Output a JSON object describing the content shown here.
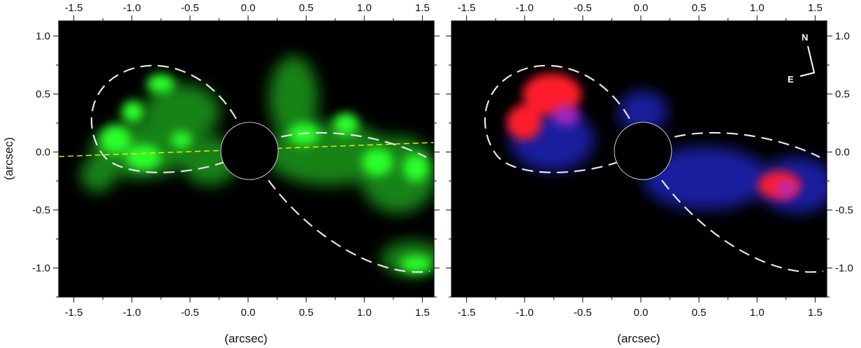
{
  "x_axis_label": "(arcsec)",
  "y_axis_label": "(arcsec)",
  "x_ticks": [
    "-1.5",
    "-1.0",
    "-0.5",
    "0.0",
    "0.5",
    "1.0",
    "1.5"
  ],
  "x_tick_values": [
    -1.5,
    -1.0,
    -0.5,
    0.0,
    0.5,
    1.0,
    1.5
  ],
  "y_ticks": [
    "1.0",
    "0.5",
    "0.0",
    "-0.5",
    "-1.0"
  ],
  "y_tick_values": [
    1.0,
    0.5,
    0.0,
    -0.5,
    -1.0
  ],
  "x_range": [
    -1.63,
    1.6
  ],
  "y_range": [
    -1.25,
    1.13
  ],
  "compass": {
    "north": "N",
    "east": "E"
  },
  "colors": {
    "background": "#000000",
    "green_emission": "#33ff33",
    "red_emission": "#ff2233",
    "blue_emission": "#2233ff",
    "ellipse": "#e6e6e6",
    "major_axis": "#ffee00"
  },
  "panels": [
    {
      "name": "left-panel",
      "channels": [
        "green"
      ],
      "has_major_axis_line": true
    },
    {
      "name": "right-panel",
      "channels": [
        "red",
        "blue"
      ],
      "has_compass": true
    }
  ]
}
